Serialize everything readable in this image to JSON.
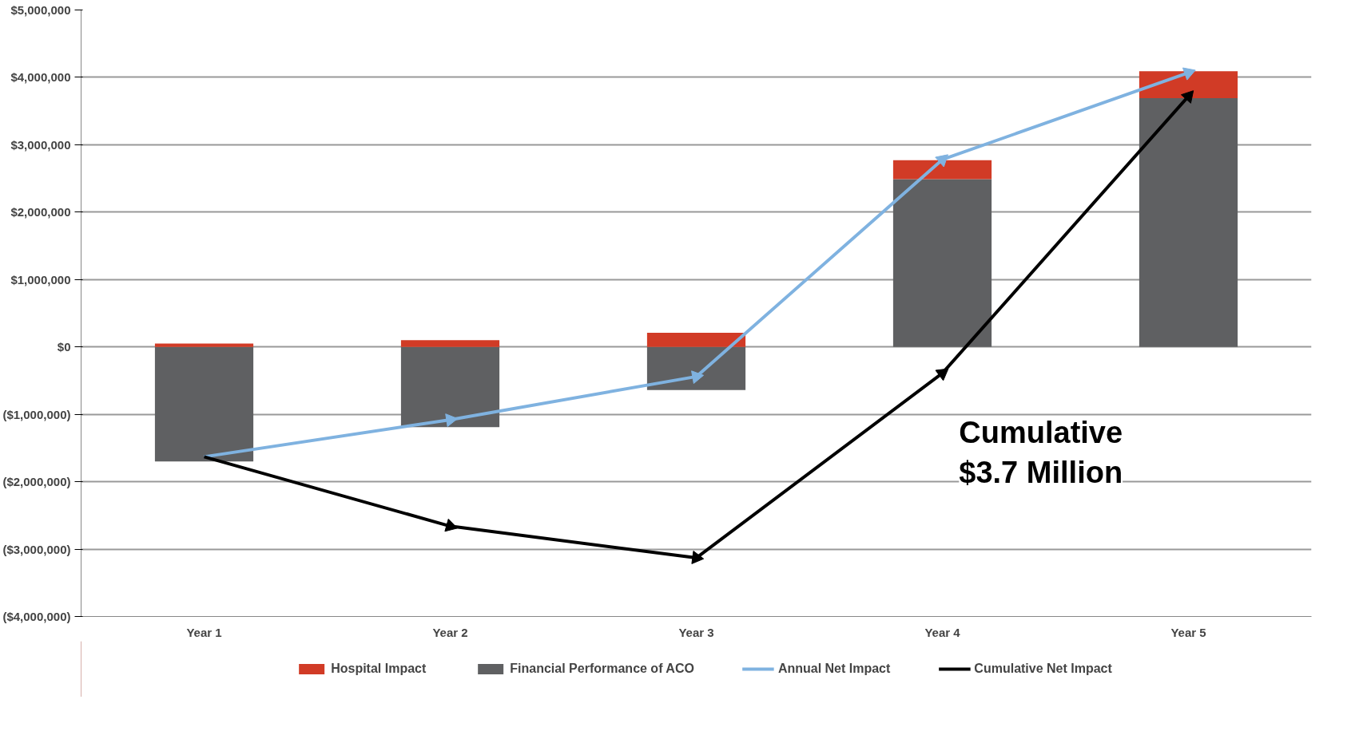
{
  "chart_data": {
    "type": "bar",
    "stacked": true,
    "categories": [
      "Year 1",
      "Year 2",
      "Year 3",
      "Year 4",
      "Year 5"
    ],
    "series": [
      {
        "name": "Financial Performance of ACO",
        "color": "#5f6062",
        "values": [
          -1700000,
          -1190000,
          -640000,
          2490000,
          3690000
        ]
      },
      {
        "name": "Hospital Impact",
        "color": "#d13b26",
        "values": [
          50000,
          100000,
          210000,
          280000,
          400000
        ]
      },
      {
        "name": "Annual Net Impact",
        "type": "line",
        "marker": "triangle",
        "color": "#7fb2e0",
        "values": [
          -1630000,
          -1080000,
          -440000,
          2780000,
          4070000
        ]
      },
      {
        "name": "Cumulative Net Impact",
        "type": "line",
        "marker": "triangle",
        "color": "#000000",
        "values": [
          -1630000,
          -2660000,
          -3130000,
          -390000,
          3720000
        ]
      }
    ],
    "ylim": [
      -4000000,
      5000000
    ],
    "yticks": [
      {
        "value": -4000000,
        "label": "($4,000,000)"
      },
      {
        "value": -3000000,
        "label": "($3,000,000)"
      },
      {
        "value": -2000000,
        "label": "($2,000,000)"
      },
      {
        "value": -1000000,
        "label": "($1,000,000)"
      },
      {
        "value": 0,
        "label": "$0"
      },
      {
        "value": 1000000,
        "label": "$1,000,000"
      },
      {
        "value": 2000000,
        "label": "$2,000,000"
      },
      {
        "value": 3000000,
        "label": "$3,000,000"
      },
      {
        "value": 4000000,
        "label": "$4,000,000"
      },
      {
        "value": 5000000,
        "label": "$5,000,000"
      }
    ],
    "grid": "y",
    "legend": "bottom",
    "annotations": [
      "Cumulative\n$3.7 Million"
    ]
  }
}
